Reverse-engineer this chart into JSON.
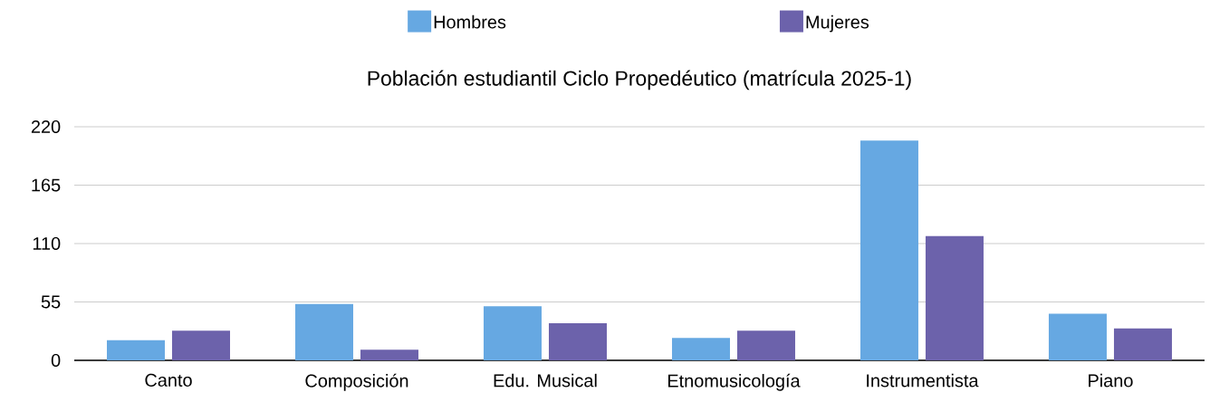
{
  "chart_data": {
    "type": "bar",
    "title": "Población estudiantil Ciclo Propedéutico (matrícula 2025-1)",
    "categories": [
      "Canto",
      "Composición",
      "Edu. Musical",
      "Etnomusicología",
      "Instrumentista",
      "Piano"
    ],
    "series": [
      {
        "name": "Hombres",
        "color": "#66a8e2",
        "values": [
          19,
          53,
          51,
          21,
          207,
          44
        ]
      },
      {
        "name": "Mujeres",
        "color": "#6c62ab",
        "values": [
          28,
          10,
          35,
          28,
          117,
          30
        ]
      }
    ],
    "ylim": [
      0,
      220
    ],
    "yticks": [
      0,
      55,
      110,
      165,
      220
    ],
    "grid": "y",
    "legend": "top"
  }
}
